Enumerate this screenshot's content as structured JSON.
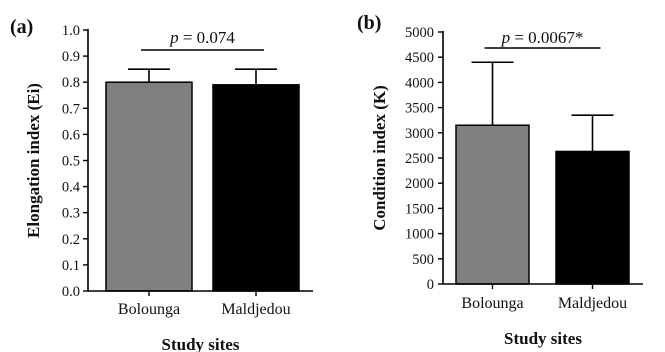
{
  "chart_data": [
    {
      "type": "bar",
      "panel_label": "(a)",
      "categories": [
        "Bolounga",
        "Maldjedou"
      ],
      "values": [
        0.8,
        0.79
      ],
      "error_upper": [
        0.85,
        0.85
      ],
      "colors": [
        "#808080",
        "#000000"
      ],
      "xlabel": "Study sites",
      "ylabel": "Elongation index (Ei)",
      "ylim": [
        0,
        1.0
      ],
      "yticks": [
        0.0,
        0.1,
        0.2,
        0.3,
        0.4,
        0.5,
        0.6,
        0.7,
        0.8,
        0.9,
        1.0
      ],
      "ytick_labels": [
        "0.0",
        "0.1",
        "0.2",
        "0.3",
        "0.4",
        "0.5",
        "0.6",
        "0.7",
        "0.8",
        "0.9",
        "1.0"
      ],
      "annotation": {
        "italic": "p",
        "rest": " = 0.074"
      },
      "grid": false
    },
    {
      "type": "bar",
      "panel_label": "(b)",
      "categories": [
        "Bolounga",
        "Maldjedou"
      ],
      "values": [
        3150,
        2630
      ],
      "error_upper": [
        4400,
        3350
      ],
      "colors": [
        "#808080",
        "#000000"
      ],
      "xlabel": "Study sites",
      "ylabel": "Condition index (K)",
      "ylim": [
        0,
        5000
      ],
      "yticks": [
        0,
        500,
        1000,
        1500,
        2000,
        2500,
        3000,
        3500,
        4000,
        4500,
        5000
      ],
      "ytick_labels": [
        "0",
        "500",
        "1000",
        "1500",
        "2000",
        "2500",
        "3000",
        "3500",
        "4000",
        "4500",
        "5000"
      ],
      "annotation": {
        "italic": "p",
        "rest": " = 0.0067*"
      },
      "grid": false
    }
  ]
}
